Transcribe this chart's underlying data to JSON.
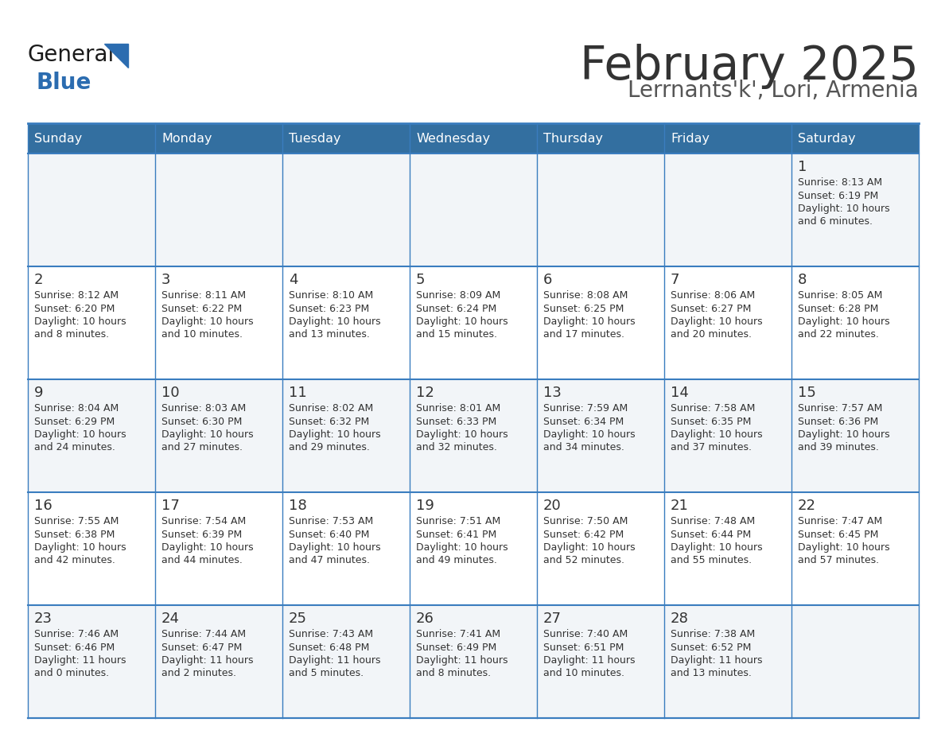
{
  "title": "February 2025",
  "subtitle": "Lerrnants'k', Lori, Armenia",
  "days_of_week": [
    "Sunday",
    "Monday",
    "Tuesday",
    "Wednesday",
    "Thursday",
    "Friday",
    "Saturday"
  ],
  "header_bg": "#336fa0",
  "header_text": "#ffffff",
  "cell_bg_odd": "#f2f5f8",
  "cell_bg_even": "#ffffff",
  "border_color": "#3a7dbf",
  "title_color": "#333333",
  "subtitle_color": "#555555",
  "day_number_color": "#333333",
  "cell_text_color": "#333333",
  "calendar_data": [
    [
      null,
      null,
      null,
      null,
      null,
      null,
      {
        "day": 1,
        "sunrise": "8:13 AM",
        "sunset": "6:19 PM",
        "daylight_h": "10 hours",
        "daylight_m": "and 6 minutes."
      }
    ],
    [
      {
        "day": 2,
        "sunrise": "8:12 AM",
        "sunset": "6:20 PM",
        "daylight_h": "10 hours",
        "daylight_m": "and 8 minutes."
      },
      {
        "day": 3,
        "sunrise": "8:11 AM",
        "sunset": "6:22 PM",
        "daylight_h": "10 hours",
        "daylight_m": "and 10 minutes."
      },
      {
        "day": 4,
        "sunrise": "8:10 AM",
        "sunset": "6:23 PM",
        "daylight_h": "10 hours",
        "daylight_m": "and 13 minutes."
      },
      {
        "day": 5,
        "sunrise": "8:09 AM",
        "sunset": "6:24 PM",
        "daylight_h": "10 hours",
        "daylight_m": "and 15 minutes."
      },
      {
        "day": 6,
        "sunrise": "8:08 AM",
        "sunset": "6:25 PM",
        "daylight_h": "10 hours",
        "daylight_m": "and 17 minutes."
      },
      {
        "day": 7,
        "sunrise": "8:06 AM",
        "sunset": "6:27 PM",
        "daylight_h": "10 hours",
        "daylight_m": "and 20 minutes."
      },
      {
        "day": 8,
        "sunrise": "8:05 AM",
        "sunset": "6:28 PM",
        "daylight_h": "10 hours",
        "daylight_m": "and 22 minutes."
      }
    ],
    [
      {
        "day": 9,
        "sunrise": "8:04 AM",
        "sunset": "6:29 PM",
        "daylight_h": "10 hours",
        "daylight_m": "and 24 minutes."
      },
      {
        "day": 10,
        "sunrise": "8:03 AM",
        "sunset": "6:30 PM",
        "daylight_h": "10 hours",
        "daylight_m": "and 27 minutes."
      },
      {
        "day": 11,
        "sunrise": "8:02 AM",
        "sunset": "6:32 PM",
        "daylight_h": "10 hours",
        "daylight_m": "and 29 minutes."
      },
      {
        "day": 12,
        "sunrise": "8:01 AM",
        "sunset": "6:33 PM",
        "daylight_h": "10 hours",
        "daylight_m": "and 32 minutes."
      },
      {
        "day": 13,
        "sunrise": "7:59 AM",
        "sunset": "6:34 PM",
        "daylight_h": "10 hours",
        "daylight_m": "and 34 minutes."
      },
      {
        "day": 14,
        "sunrise": "7:58 AM",
        "sunset": "6:35 PM",
        "daylight_h": "10 hours",
        "daylight_m": "and 37 minutes."
      },
      {
        "day": 15,
        "sunrise": "7:57 AM",
        "sunset": "6:36 PM",
        "daylight_h": "10 hours",
        "daylight_m": "and 39 minutes."
      }
    ],
    [
      {
        "day": 16,
        "sunrise": "7:55 AM",
        "sunset": "6:38 PM",
        "daylight_h": "10 hours",
        "daylight_m": "and 42 minutes."
      },
      {
        "day": 17,
        "sunrise": "7:54 AM",
        "sunset": "6:39 PM",
        "daylight_h": "10 hours",
        "daylight_m": "and 44 minutes."
      },
      {
        "day": 18,
        "sunrise": "7:53 AM",
        "sunset": "6:40 PM",
        "daylight_h": "10 hours",
        "daylight_m": "and 47 minutes."
      },
      {
        "day": 19,
        "sunrise": "7:51 AM",
        "sunset": "6:41 PM",
        "daylight_h": "10 hours",
        "daylight_m": "and 49 minutes."
      },
      {
        "day": 20,
        "sunrise": "7:50 AM",
        "sunset": "6:42 PM",
        "daylight_h": "10 hours",
        "daylight_m": "and 52 minutes."
      },
      {
        "day": 21,
        "sunrise": "7:48 AM",
        "sunset": "6:44 PM",
        "daylight_h": "10 hours",
        "daylight_m": "and 55 minutes."
      },
      {
        "day": 22,
        "sunrise": "7:47 AM",
        "sunset": "6:45 PM",
        "daylight_h": "10 hours",
        "daylight_m": "and 57 minutes."
      }
    ],
    [
      {
        "day": 23,
        "sunrise": "7:46 AM",
        "sunset": "6:46 PM",
        "daylight_h": "11 hours",
        "daylight_m": "and 0 minutes."
      },
      {
        "day": 24,
        "sunrise": "7:44 AM",
        "sunset": "6:47 PM",
        "daylight_h": "11 hours",
        "daylight_m": "and 2 minutes."
      },
      {
        "day": 25,
        "sunrise": "7:43 AM",
        "sunset": "6:48 PM",
        "daylight_h": "11 hours",
        "daylight_m": "and 5 minutes."
      },
      {
        "day": 26,
        "sunrise": "7:41 AM",
        "sunset": "6:49 PM",
        "daylight_h": "11 hours",
        "daylight_m": "and 8 minutes."
      },
      {
        "day": 27,
        "sunrise": "7:40 AM",
        "sunset": "6:51 PM",
        "daylight_h": "11 hours",
        "daylight_m": "and 10 minutes."
      },
      {
        "day": 28,
        "sunrise": "7:38 AM",
        "sunset": "6:52 PM",
        "daylight_h": "11 hours",
        "daylight_m": "and 13 minutes."
      },
      null
    ]
  ]
}
